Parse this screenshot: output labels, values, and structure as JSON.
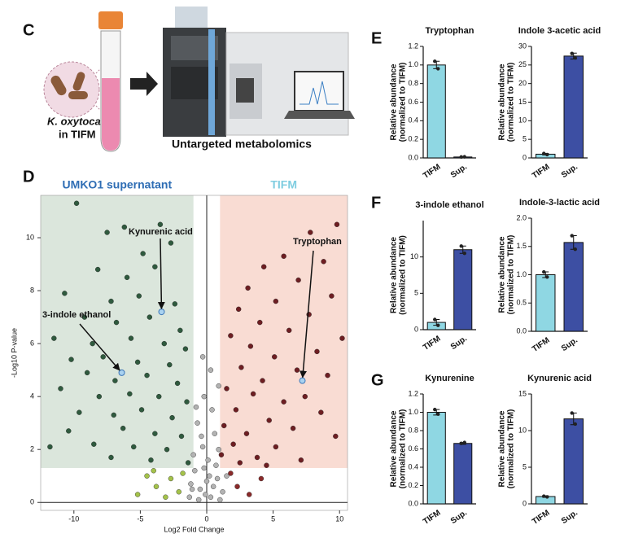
{
  "panel_labels": [
    "C",
    "D",
    "E",
    "F",
    "G"
  ],
  "panel_c": {
    "organism": "K. oxytoca",
    "medium": "in TIFM",
    "method": "Untargeted metabolomics"
  },
  "chart_data": [
    {
      "type": "scatter",
      "xlabel": "Log2 Fold Change",
      "ylabel": "-Log10 P-value",
      "xlim": [
        -12.5,
        10.6
      ],
      "ylim": [
        -0.3,
        11.6
      ],
      "xticks": [
        -10,
        -5,
        0,
        5,
        10
      ],
      "yticks": [
        0,
        2,
        4,
        6,
        8,
        10
      ],
      "regions": [
        {
          "label": "UMKO1 supernatant",
          "label_color": "#2e6db4",
          "color": "#dbe6dc",
          "xrange": [
            -12.5,
            -1
          ],
          "yrange": [
            1.3,
            11.6
          ]
        },
        {
          "label": "TIFM",
          "label_color": "#7fcde0",
          "color": "#f9dcd3",
          "xrange": [
            1,
            10.6
          ],
          "yrange": [
            1.3,
            11.6
          ]
        }
      ],
      "series": [
        {
          "color": "#2f5a3e",
          "x": [
            -9.8,
            -7.5,
            -6.2,
            -3.5,
            -4.8,
            -2.7,
            -8.2,
            -6,
            -3.9,
            -10.7,
            -7.2,
            -5.1,
            -2.4,
            -9.2,
            -6.8,
            -4.3,
            -2,
            -11.5,
            -8.6,
            -5.7,
            -3.2,
            -1.6,
            -10.2,
            -7.8,
            -5.2,
            -2.8,
            -9,
            -6.9,
            -4.5,
            -2.2,
            -11,
            -8.1,
            -5.8,
            -3.6,
            -1.5,
            -9.6,
            -7,
            -4.9,
            -2.6,
            -10.4,
            -6.3,
            -3.9,
            -1.9,
            -8.5,
            -5.5,
            -3,
            -7.2,
            -4.2,
            -1.4,
            -11.8
          ],
          "values": [
            11.3,
            10.2,
            10.4,
            10.5,
            9.4,
            9.8,
            8.8,
            8.5,
            8.9,
            7.9,
            7.6,
            7.8,
            7.5,
            7,
            6.8,
            7,
            6.5,
            6.2,
            6,
            6.2,
            6,
            5.8,
            5.4,
            5.5,
            5.3,
            5.2,
            4.9,
            4.6,
            4.8,
            4.5,
            4.3,
            4,
            4.1,
            4,
            3.8,
            3.4,
            3.3,
            3.5,
            3.2,
            2.7,
            2.8,
            2.6,
            2.5,
            2.2,
            2.1,
            2,
            1.7,
            1.6,
            1.5,
            2.1
          ]
        },
        {
          "color": "#6e1e22",
          "x": [
            9.8,
            7.8,
            5.8,
            8.8,
            4.3,
            6.9,
            3.1,
            9.4,
            5.2,
            2.4,
            7.7,
            4,
            6.2,
            10.2,
            1.8,
            3.3,
            8.3,
            5.1,
            2.6,
            6.8,
            9.1,
            4.2,
            1.5,
            3.5,
            7.4,
            5.8,
            2.2,
            8.6,
            4.7,
            1.3,
            6.5,
            3,
            9.7,
            2,
            5.2,
            1.1,
            3.8,
            7.1,
            2.5,
            4.5
          ],
          "values": [
            10.5,
            10.2,
            9.3,
            9.1,
            8.9,
            8.4,
            8.1,
            7.8,
            7.6,
            7.3,
            7.1,
            6.8,
            6.5,
            6.2,
            6.3,
            5.9,
            5.7,
            5.5,
            5.1,
            5,
            4.8,
            4.6,
            4.3,
            4.1,
            4,
            3.8,
            3.5,
            3.4,
            3.1,
            2.9,
            2.8,
            2.6,
            2.5,
            2.2,
            2.1,
            1.8,
            1.7,
            1.6,
            1.5,
            1.4
          ]
        },
        {
          "color": "#b3b3b3",
          "x": [
            0.3,
            -0.5,
            0.8,
            -0.9,
            0.1,
            -0.3,
            0.6,
            -0.7,
            0.4,
            -0.2,
            0.9,
            -0.6,
            1.2,
            -1.2,
            0.2,
            -0.1,
            0.7,
            -1,
            1,
            -0.4,
            0.5,
            -1.3,
            0,
            1.5,
            -0.8,
            0.3,
            -0.3,
            -1.1,
            0.9,
            -0.2
          ],
          "values": [
            0.2,
            0.5,
            0.9,
            1.2,
            1.6,
            2.1,
            2.6,
            3,
            3.5,
            4,
            4.4,
            0.1,
            0.4,
            0.7,
            1,
            0.3,
            1.4,
            1.8,
            0.1,
            2.5,
            0.6,
            0.2,
            0.8,
            1,
            3.6,
            5,
            5.5,
            0.5,
            2,
            1.3
          ]
        },
        {
          "color": "#a4c24a",
          "x": [
            -4.5,
            -3.8,
            -2.7,
            -2.1,
            -5.2,
            -1.8,
            -3.1,
            -4
          ],
          "values": [
            1,
            0.6,
            0.9,
            0.4,
            0.3,
            1.1,
            0.2,
            1.2
          ]
        },
        {
          "color": "#8a2a2a",
          "x": [
            2.3,
            3.2,
            1.8,
            4.1
          ],
          "values": [
            0.6,
            0.3,
            1.1,
            0.9
          ]
        }
      ],
      "annotations": [
        {
          "text": "Kynurenic acid",
          "x": -3.4,
          "y": 7.2
        },
        {
          "text": "3-indole ethanol",
          "x": -6.4,
          "y": 4.9
        },
        {
          "text": "Tryptophan",
          "x": 7.2,
          "y": 4.6
        }
      ],
      "highlight_color": "#a9d2f0"
    },
    {
      "type": "bar",
      "title": "Tryptophan",
      "ylabel": [
        "Relative abundance",
        "(normalized to TIFM)"
      ],
      "categories": [
        "TIFM",
        "Sup."
      ],
      "colors": [
        "#8fd7e3",
        "#3d4fa3"
      ],
      "values": [
        1.0,
        0.01
      ],
      "errors": [
        0.04,
        0.003
      ],
      "replicates": [
        [
          1.04,
          0.96
        ],
        [
          0.01,
          0.012
        ]
      ],
      "ylim": [
        0,
        1.2
      ],
      "yticks": [
        {
          "value": 0,
          "label": "0.0"
        },
        0.2,
        0.4,
        0.6,
        0.8,
        {
          "value": 1,
          "label": "1.0"
        },
        1.2
      ]
    },
    {
      "type": "bar",
      "title": "Indole 3-acetic acid",
      "ylabel": [
        "Relative abundance",
        "(normalized to TIFM)"
      ],
      "categories": [
        "TIFM",
        "Sup."
      ],
      "colors": [
        "#8fd7e3",
        "#3d4fa3"
      ],
      "values": [
        1.0,
        27.4
      ],
      "errors": [
        0.2,
        0.8
      ],
      "replicates": [
        [
          1.2,
          0.9
        ],
        [
          28.1,
          26.9
        ]
      ],
      "ylim": [
        0,
        30
      ],
      "yticks": [
        0,
        5,
        10,
        15,
        20,
        25,
        30
      ]
    },
    {
      "type": "bar",
      "title": "3-indole ethanol",
      "ylabel": [
        "Relative abundance",
        "(normalized to TIFM)"
      ],
      "categories": [
        "TIFM",
        "Sup."
      ],
      "colors": [
        "#8fd7e3",
        "#3d4fa3"
      ],
      "values": [
        1.0,
        11.0
      ],
      "errors": [
        0.4,
        0.5
      ],
      "replicates": [
        [
          1.4,
          0.6
        ],
        [
          11.5,
          10.5
        ]
      ],
      "ylim": [
        0,
        15
      ],
      "yticks": [
        0,
        5,
        10
      ]
    },
    {
      "type": "bar",
      "title": "Indole-3-lactic acid",
      "ylabel": [
        "Relative abundance",
        "(normalized to TIFM)"
      ],
      "categories": [
        "TIFM",
        "Sup."
      ],
      "colors": [
        "#8fd7e3",
        "#3d4fa3"
      ],
      "values": [
        1.0,
        1.57
      ],
      "errors": [
        0.05,
        0.12
      ],
      "replicates": [
        [
          1.05,
          0.96
        ],
        [
          1.69,
          1.45
        ]
      ],
      "ylim": [
        0,
        2
      ],
      "yticks": [
        {
          "value": 0,
          "label": "0.0"
        },
        0.5,
        {
          "value": 1,
          "label": "1.0"
        },
        1.5,
        {
          "value": 2,
          "label": "2.0"
        }
      ]
    },
    {
      "type": "bar",
      "title": "Kynurenine",
      "ylabel": [
        "Relative abundance",
        "(normalized to TIFM)"
      ],
      "categories": [
        "TIFM",
        "Sup."
      ],
      "colors": [
        "#8fd7e3",
        "#3d4fa3"
      ],
      "values": [
        1.0,
        0.66
      ],
      "errors": [
        0.03,
        0.01
      ],
      "replicates": [
        [
          1.03,
          0.98
        ],
        [
          0.66,
          0.67
        ]
      ],
      "ylim": [
        0,
        1.2
      ],
      "yticks": [
        {
          "value": 0,
          "label": "0.0"
        },
        0.2,
        0.4,
        0.6,
        0.8,
        {
          "value": 1,
          "label": "1.0"
        },
        1.2
      ]
    },
    {
      "type": "bar",
      "title": "Kynurenic acid",
      "ylabel": [
        "Relative abundance",
        "(normalized to TIFM)"
      ],
      "categories": [
        "TIFM",
        "Sup."
      ],
      "colors": [
        "#8fd7e3",
        "#3d4fa3"
      ],
      "values": [
        1.0,
        11.6
      ],
      "errors": [
        0.1,
        0.8
      ],
      "replicates": [
        [
          1.05,
          0.95
        ],
        [
          12.4,
          10.9
        ]
      ],
      "ylim": [
        0,
        15
      ],
      "yticks": [
        0,
        5,
        10,
        15
      ]
    }
  ]
}
